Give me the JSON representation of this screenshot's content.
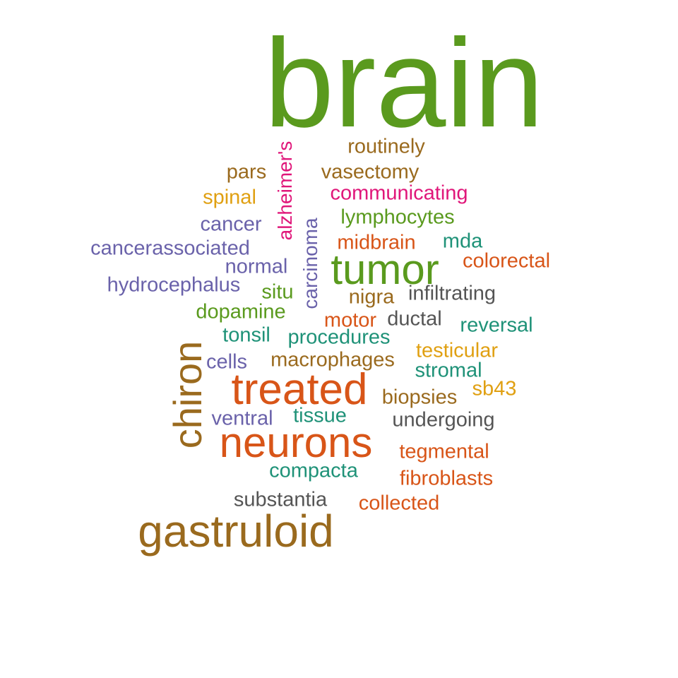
{
  "palette": {
    "green": "#5a9a1e",
    "brown": "#9a6a1e",
    "orange": "#d85518",
    "purple": "#6a62aa",
    "teal": "#1f9278",
    "magenta": "#e0177a",
    "gold": "#e0a012",
    "gray": "#555555"
  },
  "words": {
    "brain": "brain",
    "tumor": "tumor",
    "treated": "treated",
    "neurons": "neurons",
    "gastruloid": "gastruloid",
    "chiron": "chiron",
    "alzheimers": "alzheimer's",
    "carcinoma": "carcinoma",
    "routinely": "routinely",
    "pars": "pars",
    "vasectomy": "vasectomy",
    "spinal": "spinal",
    "communicating": "communicating",
    "cancer": "cancer",
    "lymphocytes": "lymphocytes",
    "cancerassociated": "cancerassociated",
    "midbrain": "midbrain",
    "mda": "mda",
    "normal": "normal",
    "colorectal": "colorectal",
    "hydrocephalus": "hydrocephalus",
    "situ": "situ",
    "nigra": "nigra",
    "infiltrating": "infiltrating",
    "dopamine": "dopamine",
    "motor": "motor",
    "ductal": "ductal",
    "reversal": "reversal",
    "tonsil": "tonsil",
    "procedures": "procedures",
    "testicular": "testicular",
    "cells": "cells",
    "macrophages": "macrophages",
    "stromal": "stromal",
    "sb43": "sb43",
    "biopsies": "biopsies",
    "ventral": "ventral",
    "tissue": "tissue",
    "undergoing": "undergoing",
    "tegmental": "tegmental",
    "compacta": "compacta",
    "fibroblasts": "fibroblasts",
    "substantia": "substantia",
    "collected": "collected"
  }
}
